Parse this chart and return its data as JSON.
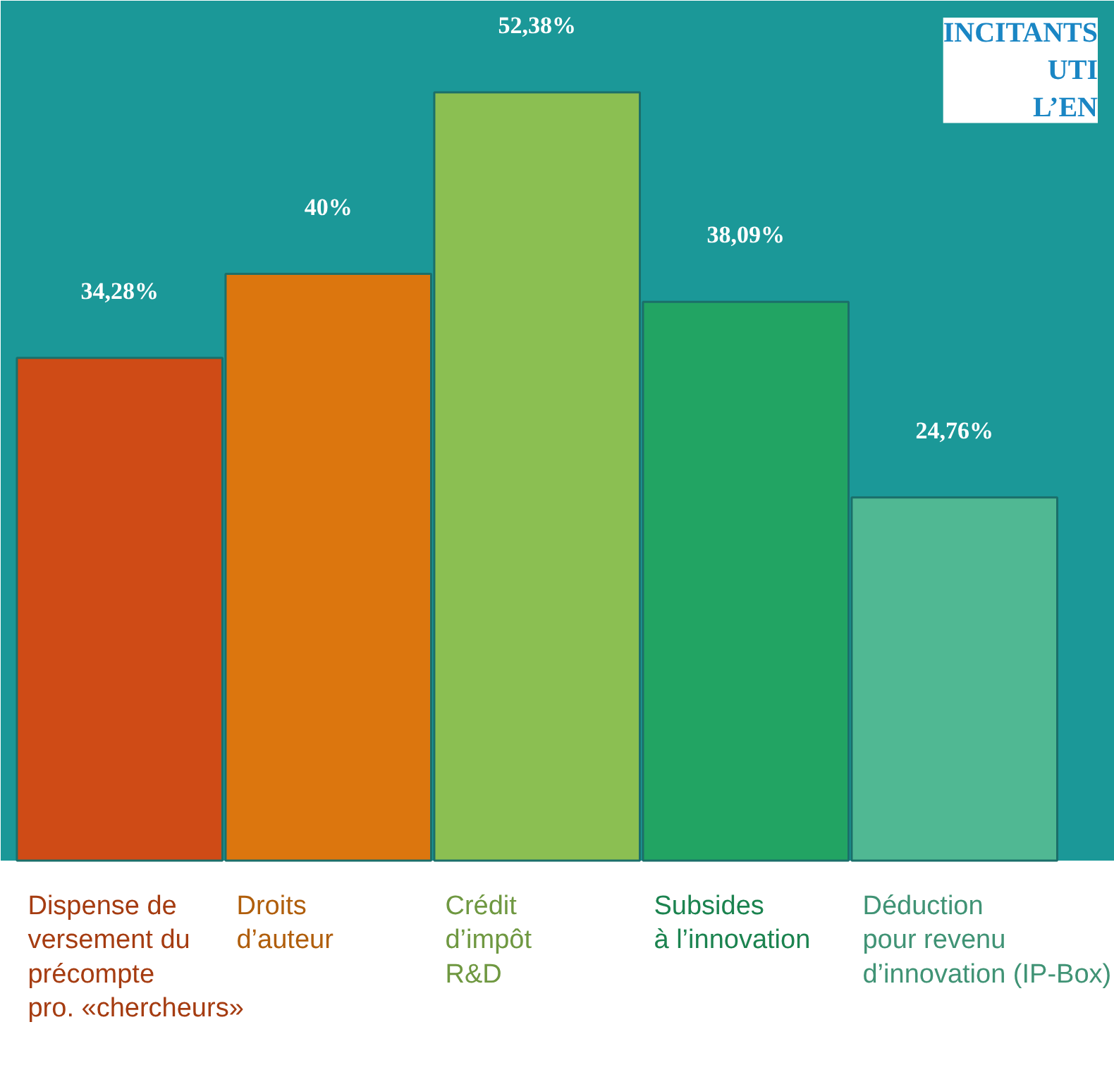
{
  "chart_data": {
    "type": "bar",
    "title": "INCITANTS\nUTI\nL’EN",
    "categories": [
      "Dispense de\nversement du\nprécompte\npro. «chercheurs»",
      "Droits\nd’auteur",
      "Crédit\nd’impôt\nR&D",
      "Subsides\nà l’innovation",
      "Déduction\npour revenu\nd’innovation (IP-Box)"
    ],
    "values": [
      34.28,
      40,
      52.38,
      38.09,
      24.76
    ],
    "value_labels": [
      "34,28%",
      "40%",
      "52,38%",
      "38,09%",
      "24,76%"
    ],
    "colors": [
      "#cf4b16",
      "#dc760e",
      "#8bbf52",
      "#22a463",
      "#50b893"
    ]
  }
}
